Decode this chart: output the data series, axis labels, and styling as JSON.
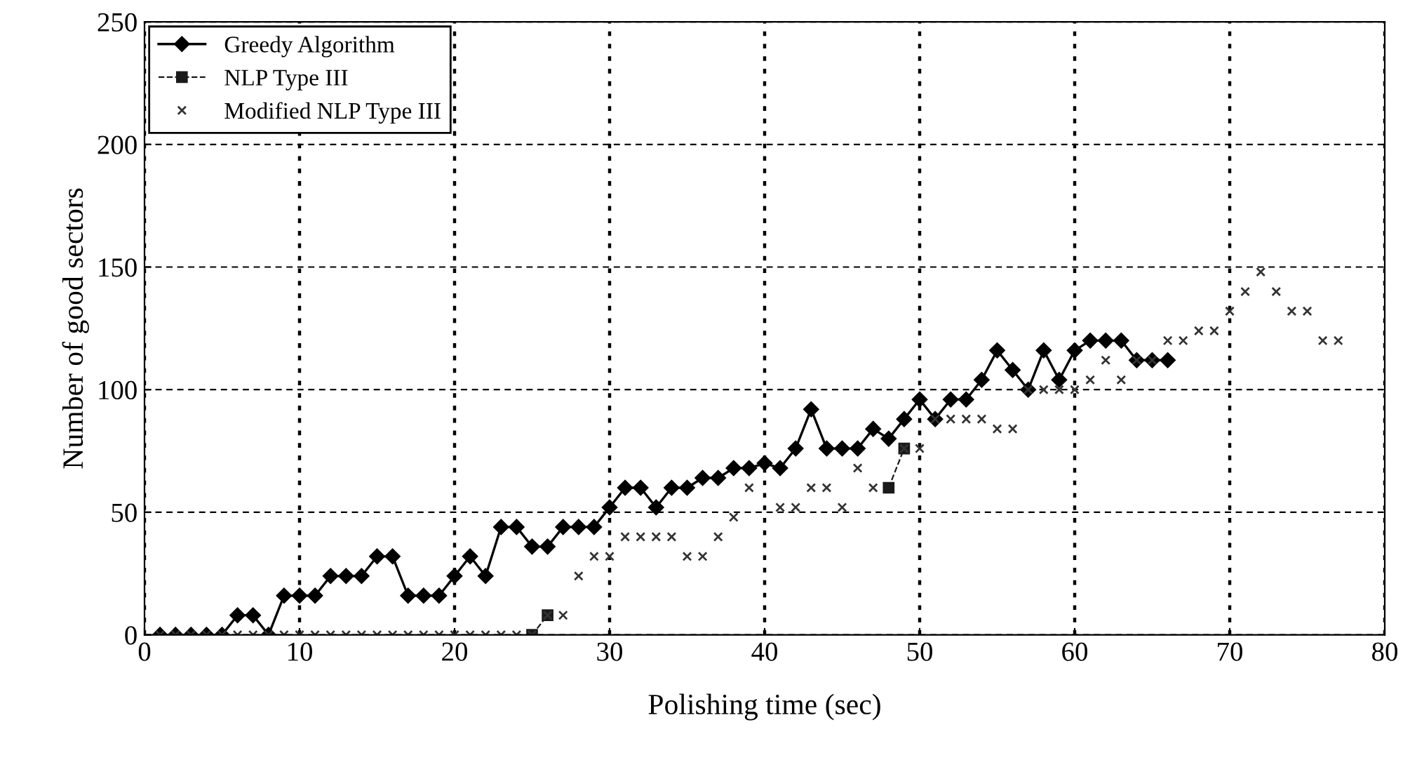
{
  "chart_data": {
    "type": "line",
    "xlabel": "Polishing time (sec)",
    "ylabel": "Number of good sectors",
    "xlim": [
      0,
      80
    ],
    "xticks": [
      0,
      10,
      20,
      30,
      40,
      50,
      60,
      70,
      80
    ],
    "ylim": [
      0,
      250
    ],
    "yticks": [
      0,
      50,
      100,
      150,
      200,
      250
    ],
    "grid": true,
    "legend": "top left",
    "series": [
      {
        "name": "Greedy Algorithm",
        "color": "#000000",
        "marker": "diamond",
        "line_style": "solid",
        "x": [
          1,
          2,
          3,
          4,
          5,
          6,
          7,
          8,
          9,
          10,
          11,
          12,
          13,
          14,
          15,
          16,
          17,
          18,
          19,
          20,
          21,
          22,
          23,
          24,
          25,
          26,
          27,
          28,
          29,
          30,
          31,
          32,
          33,
          34,
          35,
          36,
          37,
          38,
          39,
          40,
          41,
          42,
          43,
          44,
          45,
          46,
          47,
          48,
          49,
          50,
          51,
          52,
          53,
          54,
          55,
          56,
          57,
          58,
          59,
          60,
          61,
          62,
          63,
          64,
          65,
          66
        ],
        "values": [
          0,
          0,
          0,
          0,
          0,
          8,
          8,
          0,
          16,
          16,
          16,
          24,
          24,
          24,
          32,
          32,
          16,
          16,
          16,
          24,
          32,
          24,
          44,
          44,
          36,
          36,
          44,
          44,
          44,
          52,
          60,
          60,
          52,
          60,
          60,
          64,
          64,
          68,
          68,
          70,
          68,
          76,
          92,
          76,
          76,
          76,
          84,
          80,
          88,
          96,
          88,
          96,
          96,
          104,
          116,
          108,
          100,
          116,
          104,
          116,
          120,
          120,
          120,
          112,
          112,
          112
        ]
      },
      {
        "name": "NLP Type III",
        "color": "#1a1a1a",
        "marker": "square",
        "line_style": "dashed",
        "x": [
          25,
          26,
          27,
          47,
          48,
          49
        ],
        "values": [
          0,
          8,
          null,
          null,
          60,
          76
        ]
      },
      {
        "name": "Modified NLP Type III",
        "type": "scatter",
        "color": "#333333",
        "marker": "cross",
        "x": [
          1,
          2,
          3,
          4,
          5,
          6,
          7,
          8,
          9,
          10,
          11,
          12,
          13,
          14,
          15,
          16,
          17,
          18,
          19,
          20,
          21,
          22,
          23,
          24,
          25,
          26,
          27,
          28,
          29,
          30,
          31,
          32,
          33,
          34,
          35,
          36,
          37,
          38,
          39,
          40,
          41,
          42,
          43,
          44,
          45,
          46,
          47,
          49,
          50,
          51,
          52,
          53,
          54,
          55,
          56,
          57,
          58,
          59,
          60,
          61,
          62,
          63,
          64,
          65,
          66,
          67,
          68,
          69,
          70,
          71,
          72,
          73,
          74,
          75,
          76,
          77
        ],
        "values": [
          0,
          0,
          0,
          0,
          0,
          0,
          0,
          0,
          0,
          0,
          0,
          0,
          0,
          0,
          0,
          0,
          0,
          0,
          0,
          0,
          0,
          0,
          0,
          0,
          0,
          8,
          8,
          24,
          32,
          32,
          40,
          40,
          40,
          40,
          32,
          32,
          40,
          48,
          60,
          null,
          52,
          52,
          60,
          60,
          52,
          68,
          60,
          76,
          76,
          88,
          88,
          88,
          88,
          84,
          84,
          100,
          100,
          100,
          100,
          104,
          112,
          104,
          112,
          112,
          120,
          120,
          124,
          124,
          132,
          140,
          148,
          140,
          132,
          132,
          120,
          120
        ]
      }
    ]
  }
}
